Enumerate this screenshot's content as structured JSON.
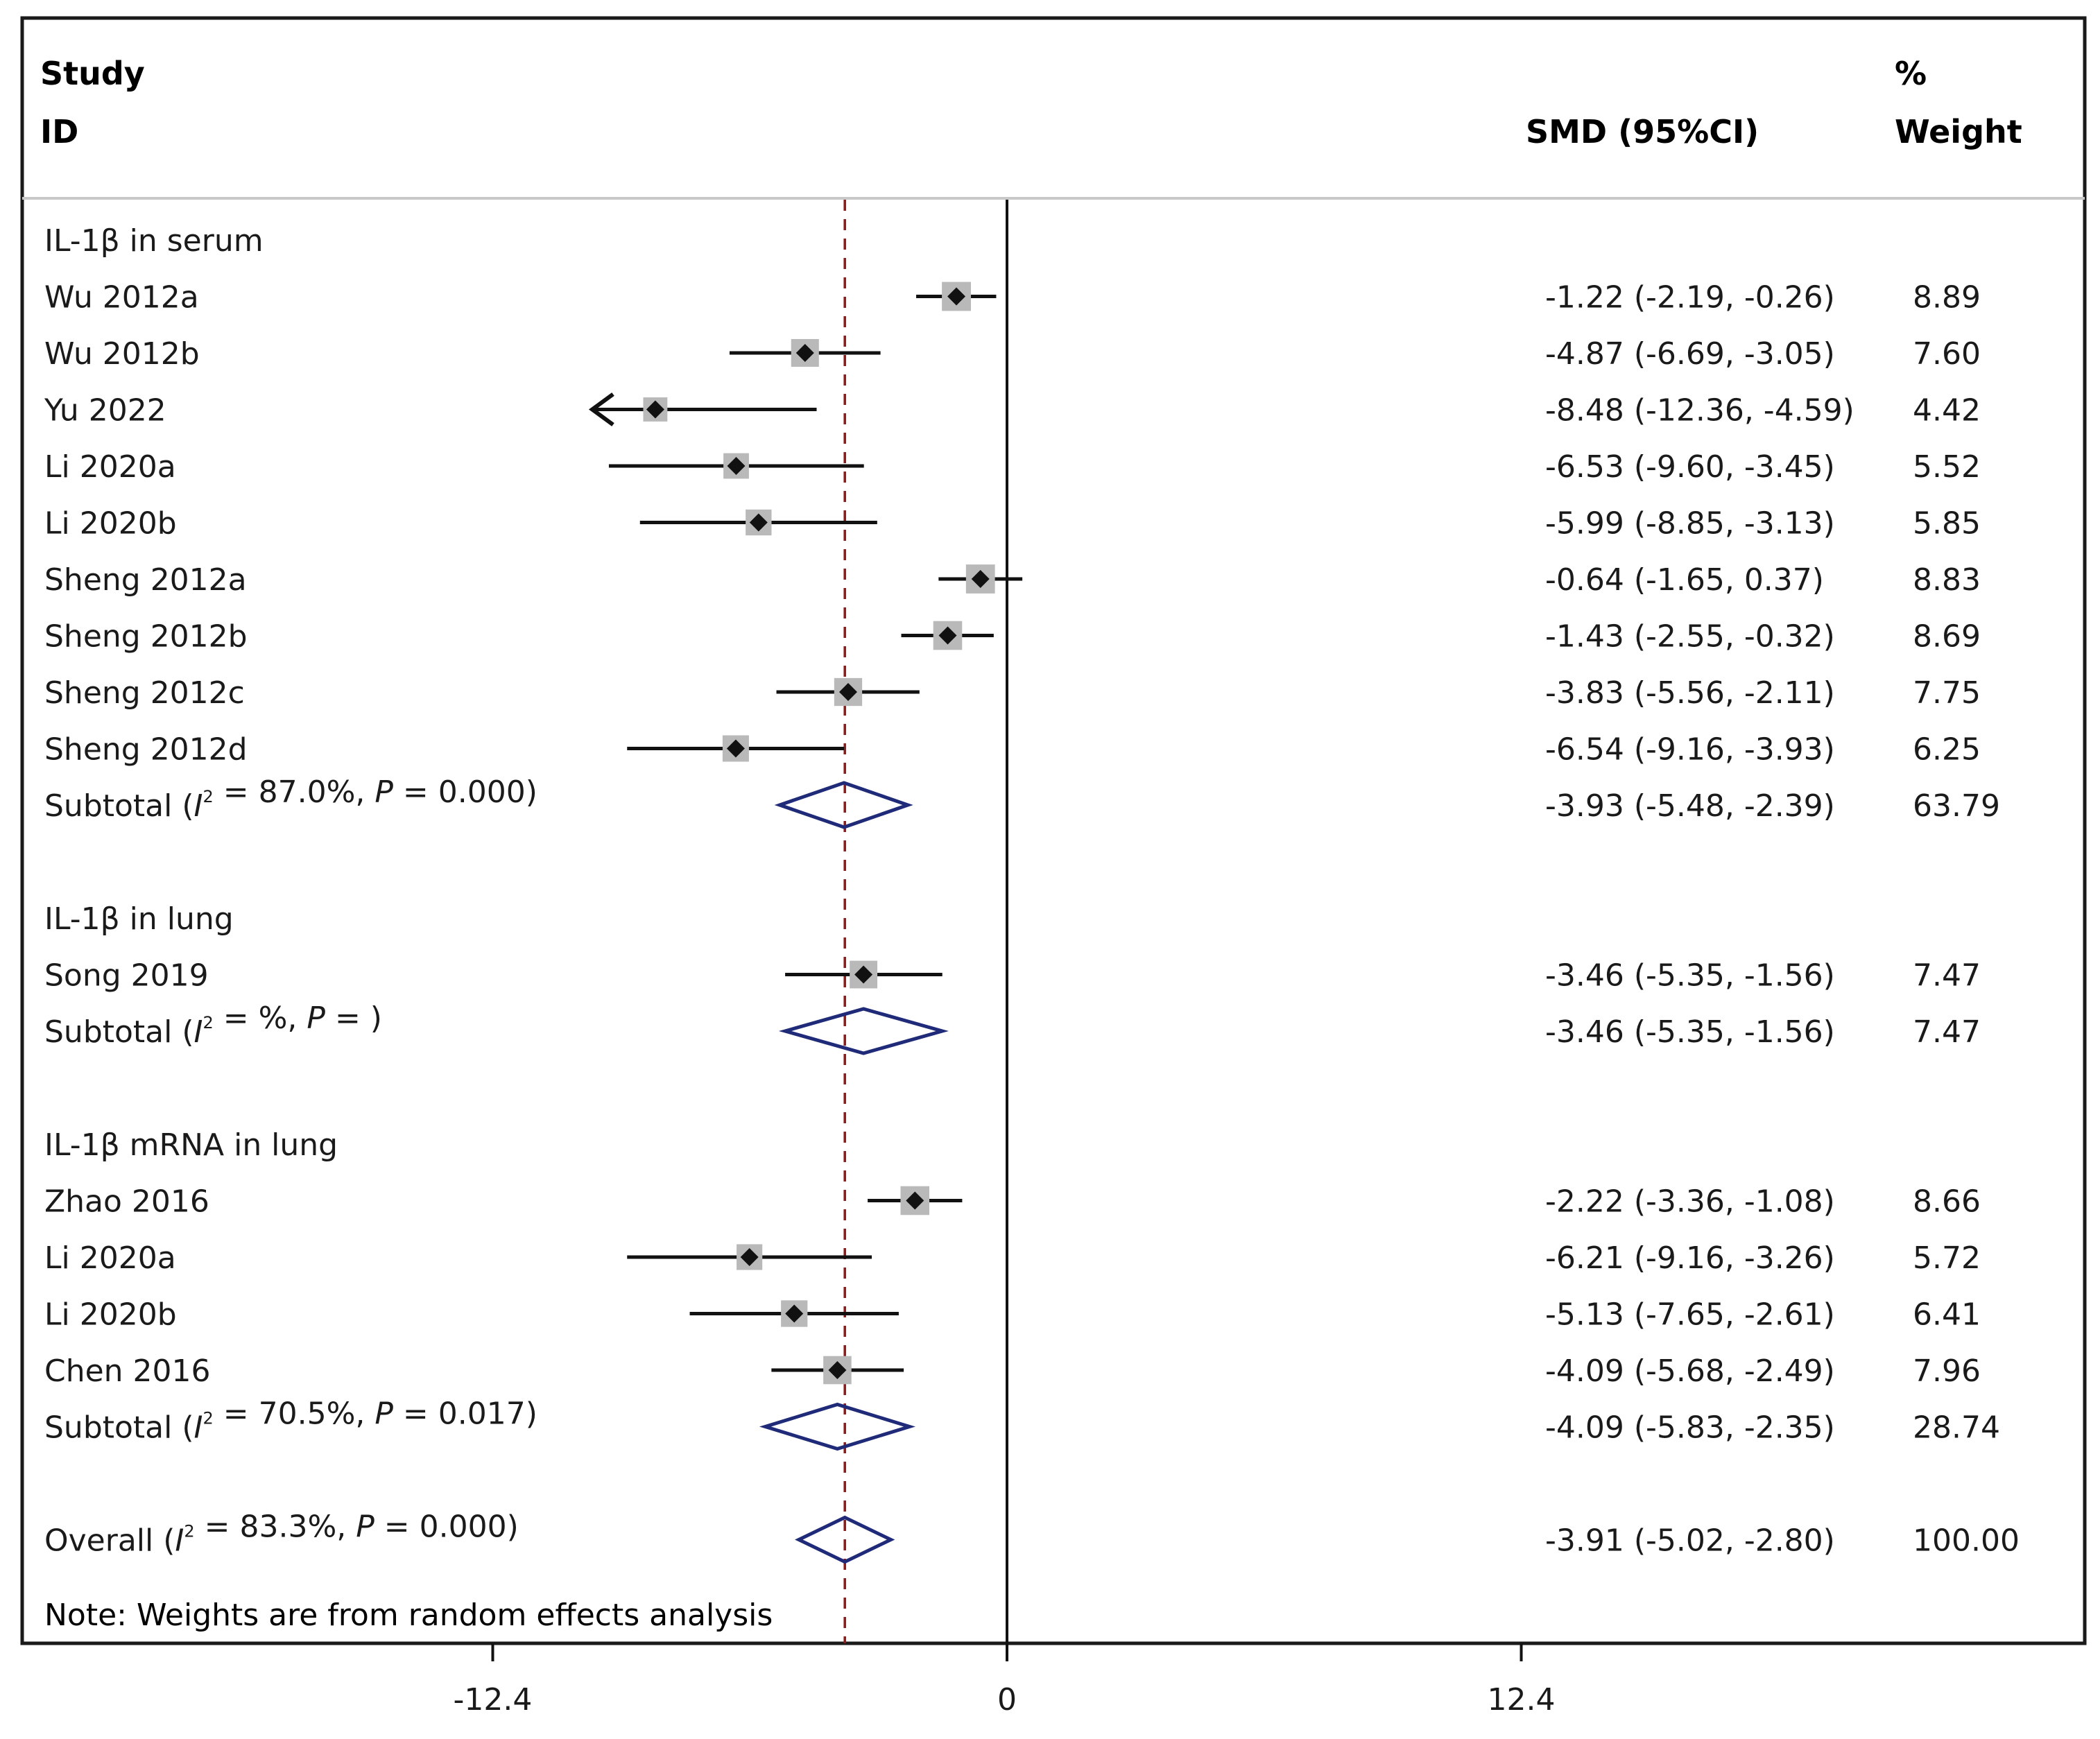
{
  "header": {
    "col1_line1": "Study",
    "col1_line2": "ID",
    "col2": "SMD (95%CI)",
    "col3_line1": "%",
    "col3_line2": "Weight"
  },
  "note": "Note: Weights are from random effects analysis",
  "chart_data": {
    "type": "forest",
    "measure": "SMD (95%CI)",
    "x_ticks": [
      -12.4,
      0,
      12.4
    ],
    "x_tick_labels": [
      "-12.4",
      "0",
      "12.4"
    ],
    "xlim": [
      -12.4,
      12.4
    ],
    "overall_reference_line": -3.91,
    "colors": {
      "line": "#111111",
      "marker_box": "#b9b9b9",
      "diamond": "#1f2a78",
      "reference_line": "#8b1a1a"
    },
    "rows": [
      {
        "kind": "group",
        "label": "IL-1β in serum"
      },
      {
        "kind": "study",
        "label": "Wu 2012a",
        "smd": -1.22,
        "lo": -2.19,
        "hi": -0.26,
        "ci_text": "-1.22 (-2.19, -0.26)",
        "weight": 8.89,
        "weight_text": "8.89"
      },
      {
        "kind": "study",
        "label": "Wu 2012b",
        "smd": -4.87,
        "lo": -6.69,
        "hi": -3.05,
        "ci_text": "-4.87 (-6.69, -3.05)",
        "weight": 7.6,
        "weight_text": "7.60"
      },
      {
        "kind": "study",
        "label": "Yu 2022",
        "smd": -8.48,
        "lo": -12.36,
        "hi": -4.59,
        "ci_text": "-8.48 (-12.36, -4.59)",
        "weight": 4.42,
        "weight_text": "4.42",
        "arrow_left": true
      },
      {
        "kind": "study",
        "label": "Li 2020a",
        "smd": -6.53,
        "lo": -9.6,
        "hi": -3.45,
        "ci_text": "-6.53 (-9.60, -3.45)",
        "weight": 5.52,
        "weight_text": "5.52"
      },
      {
        "kind": "study",
        "label": "Li 2020b",
        "smd": -5.99,
        "lo": -8.85,
        "hi": -3.13,
        "ci_text": "-5.99 (-8.85, -3.13)",
        "weight": 5.85,
        "weight_text": "5.85"
      },
      {
        "kind": "study",
        "label": "Sheng 2012a",
        "smd": -0.64,
        "lo": -1.65,
        "hi": 0.37,
        "ci_text": "-0.64 (-1.65, 0.37)",
        "weight": 8.83,
        "weight_text": "8.83"
      },
      {
        "kind": "study",
        "label": "Sheng 2012b",
        "smd": -1.43,
        "lo": -2.55,
        "hi": -0.32,
        "ci_text": "-1.43 (-2.55, -0.32)",
        "weight": 8.69,
        "weight_text": "8.69"
      },
      {
        "kind": "study",
        "label": "Sheng 2012c",
        "smd": -3.83,
        "lo": -5.56,
        "hi": -2.11,
        "ci_text": "-3.83 (-5.56, -2.11)",
        "weight": 7.75,
        "weight_text": "7.75"
      },
      {
        "kind": "study",
        "label": "Sheng 2012d",
        "smd": -6.54,
        "lo": -9.16,
        "hi": -3.93,
        "ci_text": "-6.54 (-9.16, -3.93)",
        "weight": 6.25,
        "weight_text": "6.25"
      },
      {
        "kind": "subtotal",
        "prefix": "Subtotal (",
        "i2_value": "87.0%",
        "p_value": "0.000",
        "smd": -3.93,
        "lo": -5.48,
        "hi": -2.39,
        "ci_text": "-3.93 (-5.48, -2.39)",
        "weight": 63.79,
        "weight_text": "63.79"
      },
      {
        "kind": "spacer"
      },
      {
        "kind": "group",
        "label": "IL-1β in lung"
      },
      {
        "kind": "study",
        "label": "Song 2019",
        "smd": -3.46,
        "lo": -5.35,
        "hi": -1.56,
        "ci_text": "-3.46 (-5.35, -1.56)",
        "weight": 7.47,
        "weight_text": "7.47"
      },
      {
        "kind": "subtotal",
        "prefix": "Subtotal (",
        "i2_value": "%",
        "p_value": "",
        "smd": -3.46,
        "lo": -5.35,
        "hi": -1.56,
        "ci_text": "-3.46 (-5.35, -1.56)",
        "weight": 7.47,
        "weight_text": "7.47"
      },
      {
        "kind": "spacer"
      },
      {
        "kind": "group",
        "label": "IL-1β mRNA in lung"
      },
      {
        "kind": "study",
        "label": "Zhao 2016",
        "smd": -2.22,
        "lo": -3.36,
        "hi": -1.08,
        "ci_text": "-2.22 (-3.36, -1.08)",
        "weight": 8.66,
        "weight_text": "8.66"
      },
      {
        "kind": "study",
        "label": "Li 2020a",
        "smd": -6.21,
        "lo": -9.16,
        "hi": -3.26,
        "ci_text": "-6.21 (-9.16, -3.26)",
        "weight": 5.72,
        "weight_text": "5.72"
      },
      {
        "kind": "study",
        "label": "Li 2020b",
        "smd": -5.13,
        "lo": -7.65,
        "hi": -2.61,
        "ci_text": "-5.13 (-7.65, -2.61)",
        "weight": 6.41,
        "weight_text": "6.41"
      },
      {
        "kind": "study",
        "label": "Chen 2016",
        "smd": -4.09,
        "lo": -5.68,
        "hi": -2.49,
        "ci_text": "-4.09 (-5.68, -2.49)",
        "weight": 7.96,
        "weight_text": "7.96"
      },
      {
        "kind": "subtotal",
        "prefix": "Subtotal (",
        "i2_value": "70.5%",
        "p_value": "0.017",
        "smd": -4.09,
        "lo": -5.83,
        "hi": -2.35,
        "ci_text": "-4.09 (-5.83, -2.35)",
        "weight": 28.74,
        "weight_text": "28.74"
      },
      {
        "kind": "spacer"
      },
      {
        "kind": "overall",
        "prefix": "Overall (",
        "i2_value": "83.3%",
        "p_value": "0.000",
        "smd": -3.91,
        "lo": -5.02,
        "hi": -2.8,
        "ci_text": "-3.91 (-5.02, -2.80)",
        "weight": 100.0,
        "weight_text": "100.00"
      }
    ]
  }
}
